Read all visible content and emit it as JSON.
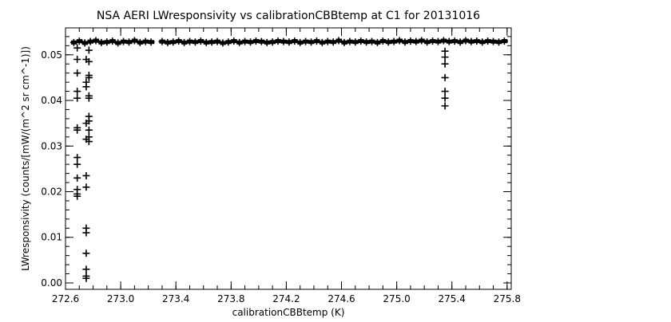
{
  "chart_data": {
    "type": "scatter",
    "title": "NSA AERI LWresponsivity vs calibrationCBBtemp at C1 for 20131016",
    "xlabel": "calibrationCBBtemp (K)",
    "ylabel": "LWresponsivity (counts/[mW/(m^2 sr cm^-1)])",
    "xlim": [
      272.6,
      275.83
    ],
    "ylim": [
      -0.0014,
      0.0559
    ],
    "xticks": [
      "272.6",
      "273.0",
      "273.4",
      "273.8",
      "274.2",
      "274.6",
      "275.0",
      "275.4",
      "275.8"
    ],
    "yticks": [
      "0.00",
      "0.01",
      "0.02",
      "0.03",
      "0.04",
      "0.05"
    ],
    "marker": "plus",
    "color": "#000000",
    "grid": false,
    "points": {
      "x": [
        272.66,
        272.7,
        272.74,
        272.78,
        272.82,
        272.86,
        272.9,
        272.94,
        272.98,
        273.02,
        273.06,
        273.1,
        273.14,
        273.18,
        273.22,
        273.3,
        273.34,
        273.38,
        273.42,
        273.46,
        273.5,
        273.54,
        273.58,
        273.62,
        273.66,
        273.7,
        273.74,
        273.78,
        273.82,
        273.86,
        273.9,
        273.94,
        273.98,
        274.02,
        274.06,
        274.1,
        274.14,
        274.18,
        274.22,
        274.26,
        274.3,
        274.34,
        274.38,
        274.42,
        274.46,
        274.5,
        274.54,
        274.58,
        274.62,
        274.66,
        274.7,
        274.74,
        274.78,
        274.82,
        274.86,
        274.9,
        274.94,
        274.98,
        275.02,
        275.06,
        275.1,
        275.14,
        275.18,
        275.22,
        275.26,
        275.3,
        275.34,
        275.38,
        275.42,
        275.46,
        275.5,
        275.54,
        275.58,
        275.62,
        275.66,
        275.7,
        275.74,
        275.78,
        272.685,
        272.685,
        272.685,
        272.685,
        272.685,
        272.685,
        272.685,
        272.685,
        272.685,
        272.685,
        272.685,
        272.685,
        272.685,
        272.75,
        272.75,
        272.75,
        272.75,
        272.75,
        272.75,
        272.75,
        272.75,
        272.75,
        272.75,
        272.75,
        272.75,
        272.75,
        272.77,
        272.77,
        272.77,
        272.77,
        272.77,
        272.77,
        272.77,
        272.77,
        272.77,
        272.77,
        272.77,
        275.35,
        275.35,
        275.35,
        275.35,
        275.35,
        275.35,
        275.35
      ],
      "y": [
        0.0527,
        0.053,
        0.0526,
        0.0529,
        0.0531,
        0.0527,
        0.0528,
        0.053,
        0.0526,
        0.0529,
        0.0528,
        0.0531,
        0.0527,
        0.0529,
        0.0528,
        0.0529,
        0.0527,
        0.0528,
        0.053,
        0.0527,
        0.0529,
        0.0528,
        0.053,
        0.0527,
        0.0528,
        0.0529,
        0.0526,
        0.0528,
        0.053,
        0.0527,
        0.0529,
        0.0528,
        0.053,
        0.0529,
        0.0527,
        0.0528,
        0.053,
        0.0529,
        0.0528,
        0.053,
        0.0527,
        0.0529,
        0.0528,
        0.053,
        0.0527,
        0.0529,
        0.0528,
        0.0531,
        0.0527,
        0.0529,
        0.0528,
        0.053,
        0.0528,
        0.0529,
        0.0527,
        0.053,
        0.0528,
        0.0529,
        0.0531,
        0.0528,
        0.053,
        0.0529,
        0.0531,
        0.0528,
        0.053,
        0.0529,
        0.0531,
        0.0529,
        0.053,
        0.0528,
        0.0531,
        0.0529,
        0.053,
        0.0528,
        0.053,
        0.0529,
        0.0528,
        0.053,
        0.0515,
        0.049,
        0.046,
        0.042,
        0.0405,
        0.034,
        0.0335,
        0.0275,
        0.026,
        0.023,
        0.0205,
        0.0195,
        0.019,
        0.049,
        0.044,
        0.043,
        0.035,
        0.0315,
        0.0235,
        0.021,
        0.012,
        0.011,
        0.0065,
        0.003,
        0.0015,
        0.001,
        0.051,
        0.0485,
        0.0455,
        0.045,
        0.041,
        0.0405,
        0.0365,
        0.0355,
        0.0335,
        0.032,
        0.031,
        0.0508,
        0.0495,
        0.048,
        0.045,
        0.042,
        0.0405,
        0.0388
      ]
    }
  }
}
